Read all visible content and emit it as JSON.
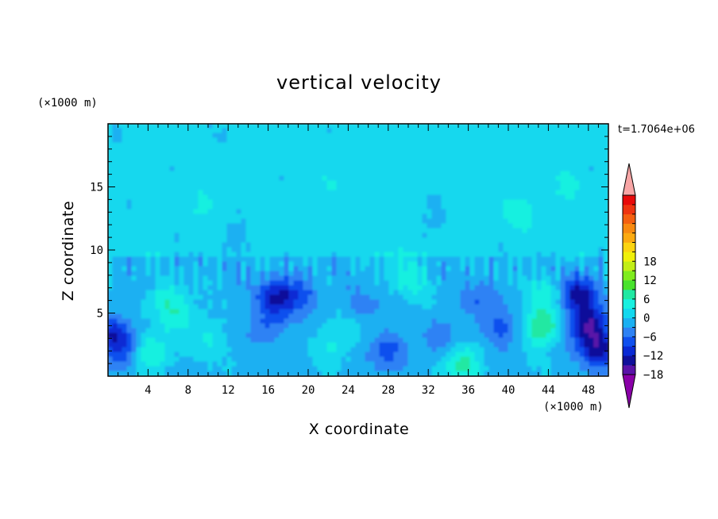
{
  "chart_data": {
    "type": "heatmap",
    "title": "vertical velocity",
    "xlabel": "X coordinate",
    "ylabel": "Z coordinate",
    "x_unit": "(×1000 m)",
    "y_unit": "(×1000 m)",
    "time_label": "t=1.7064e+06",
    "xlim": [
      0,
      50
    ],
    "ylim": [
      0,
      20
    ],
    "x_ticks": [
      "4",
      "8",
      "12",
      "16",
      "20",
      "24",
      "28",
      "32",
      "36",
      "40",
      "44",
      "48"
    ],
    "y_ticks": [
      "5",
      "10",
      "15"
    ],
    "colorbar": {
      "range": [
        -21,
        21
      ],
      "step": 3,
      "labels": [
        "18",
        "12",
        "6",
        "0",
        "−6",
        "−12",
        "−18"
      ],
      "colors": [
        "#8a00a8",
        "#5a13a8",
        "#10109a",
        "#0a2ad4",
        "#1050ee",
        "#2e82f4",
        "#1ab0f2",
        "#12d8ee",
        "#18f0e0",
        "#20e8a2",
        "#48e22c",
        "#80ec1e",
        "#c2ee16",
        "#f0f00a",
        "#fcd410",
        "#fcaa10",
        "#f88a10",
        "#f46010",
        "#ee3410",
        "#e80a0a",
        "#f8a6a6"
      ]
    },
    "features": [
      {
        "x": 0.5,
        "z": 3.2,
        "w": -10
      },
      {
        "x": 1.8,
        "z": 1.6,
        "w": -7
      },
      {
        "x": 4.0,
        "z": 1.8,
        "w": 9
      },
      {
        "x": 6.0,
        "z": 6.0,
        "w": 6
      },
      {
        "x": 7.5,
        "z": 4.5,
        "w": 5
      },
      {
        "x": 10.0,
        "z": 2.8,
        "w": 4
      },
      {
        "x": 16.8,
        "z": 6.2,
        "w": -11
      },
      {
        "x": 16.0,
        "z": 4.0,
        "w": -5
      },
      {
        "x": 19.5,
        "z": 6.5,
        "w": -6
      },
      {
        "x": 22.0,
        "z": 2.0,
        "w": 3
      },
      {
        "x": 24.0,
        "z": 3.5,
        "w": 4
      },
      {
        "x": 25.5,
        "z": 5.5,
        "w": -4
      },
      {
        "x": 28.0,
        "z": 2.0,
        "w": -7
      },
      {
        "x": 30.5,
        "z": 7.5,
        "w": 5
      },
      {
        "x": 29.0,
        "z": 9.0,
        "w": 3
      },
      {
        "x": 33.0,
        "z": 3.0,
        "w": -4
      },
      {
        "x": 35.5,
        "z": 1.0,
        "w": 9
      },
      {
        "x": 37.0,
        "z": 6.0,
        "w": -5
      },
      {
        "x": 39.0,
        "z": 3.5,
        "w": -6
      },
      {
        "x": 43.5,
        "z": 3.8,
        "w": 10
      },
      {
        "x": 44.0,
        "z": 6.5,
        "w": 6
      },
      {
        "x": 47.0,
        "z": 6.5,
        "w": -13
      },
      {
        "x": 48.0,
        "z": 4.0,
        "w": -14
      },
      {
        "x": 49.0,
        "z": 2.0,
        "w": -12
      },
      {
        "x": 10.0,
        "z": 14.0,
        "w": 2
      },
      {
        "x": 22.0,
        "z": 15.0,
        "w": 2
      },
      {
        "x": 37.0,
        "z": 17.0,
        "w": 2
      },
      {
        "x": 41.0,
        "z": 13.0,
        "w": 3
      },
      {
        "x": 46.0,
        "z": 15.0,
        "w": 2
      },
      {
        "x": 13.0,
        "z": 11.0,
        "w": -2
      },
      {
        "x": 32.0,
        "z": 12.0,
        "w": -2
      }
    ]
  }
}
